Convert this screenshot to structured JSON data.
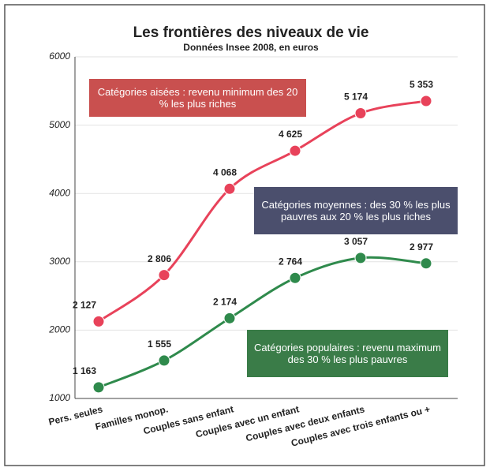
{
  "chart_data": {
    "type": "line",
    "title": "Les frontières des niveaux de vie",
    "subtitle": "Données Insee 2008, en euros",
    "categories": [
      "Pers. seules",
      "Familles monop.",
      "Couples sans enfant",
      "Couples avec un enfant",
      "Couples avec deux enfants",
      "Couples avec trois enfants ou +"
    ],
    "series": [
      {
        "name": "Catégories aisées : revenu minimum des 20 % les plus riches",
        "color": "#e8425a",
        "values": [
          2127,
          2806,
          4068,
          4625,
          5174,
          5353
        ],
        "value_labels": [
          "2 127",
          "2 806",
          "4 068",
          "4 625",
          "5 174",
          "5 353"
        ]
      },
      {
        "name": "Catégories populaires : revenu maximum des 30 % les plus pauvres",
        "color": "#2f8a4c",
        "values": [
          1163,
          1555,
          2174,
          2764,
          3057,
          2977
        ],
        "value_labels": [
          "1 163",
          "1 555",
          "2 174",
          "2 764",
          "3 057",
          "2 977"
        ]
      }
    ],
    "annotations": [
      "Catégories moyennes : des 30 % les plus pauvres aux 20 % les plus riches"
    ],
    "ylim": [
      1000,
      6000
    ],
    "yticks": [
      1000,
      2000,
      3000,
      4000,
      5000,
      6000
    ],
    "grid": true
  }
}
